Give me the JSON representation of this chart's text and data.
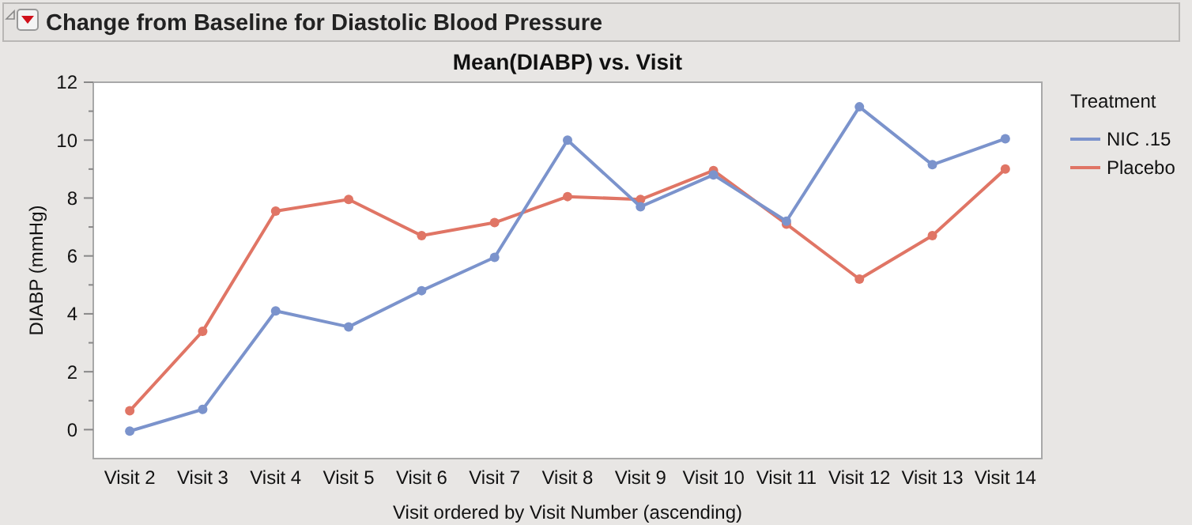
{
  "chart_data": {
    "type": "line",
    "title": "Change from Baseline for Diastolic Blood Pressure",
    "subtitle": "Mean(DIABP) vs. Visit",
    "xlabel": "Visit ordered by Visit Number (ascending)",
    "ylabel": "DIABP (mmHg)",
    "legend_title": "Treatment",
    "legend": "right",
    "marker": "circle",
    "grid": false,
    "categories": [
      "Visit 2",
      "Visit 3",
      "Visit 4",
      "Visit 5",
      "Visit 6",
      "Visit 7",
      "Visit 8",
      "Visit 9",
      "Visit 10",
      "Visit 11",
      "Visit 12",
      "Visit 13",
      "Visit 14"
    ],
    "ylim": [
      -1,
      12
    ],
    "yticks": [
      0,
      {
        "value": 1,
        "label": null
      },
      2,
      {
        "value": 3,
        "label": null
      },
      4,
      {
        "value": 5,
        "label": null
      },
      6,
      {
        "value": 7,
        "label": null
      },
      8,
      {
        "value": 9,
        "label": null
      },
      10,
      {
        "value": 11,
        "label": null
      },
      12
    ],
    "series": [
      {
        "name": "NIC .15",
        "color": "#7b93cc",
        "values": [
          -0.05,
          0.7,
          4.1,
          3.55,
          4.8,
          5.95,
          10.0,
          7.7,
          8.8,
          7.2,
          11.15,
          9.15,
          10.05
        ]
      },
      {
        "name": "Placebo",
        "color": "#e07565",
        "values": [
          0.65,
          3.4,
          7.55,
          7.95,
          6.7,
          7.15,
          8.05,
          7.95,
          8.95,
          7.1,
          5.2,
          6.7,
          9.0
        ]
      }
    ]
  }
}
